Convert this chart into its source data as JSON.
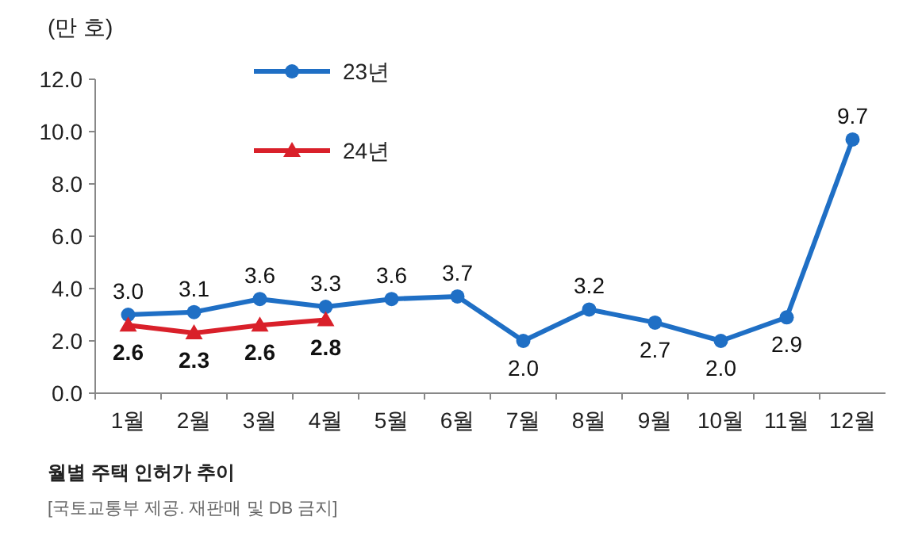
{
  "chart_data": {
    "type": "line",
    "ylabel": "(만 호)",
    "categories": [
      "1월",
      "2월",
      "3월",
      "4월",
      "5월",
      "6월",
      "7월",
      "8월",
      "9월",
      "10월",
      "11월",
      "12월"
    ],
    "series": [
      {
        "name": "23년",
        "color": "#1f6fc5",
        "marker": "circle",
        "values": [
          3.0,
          3.1,
          3.6,
          3.3,
          3.6,
          3.7,
          2.0,
          3.2,
          2.7,
          2.0,
          2.9,
          9.7
        ],
        "value_labels": [
          "3.0",
          "3.1",
          "3.6",
          "3.3",
          "3.6",
          "3.7",
          "2.0",
          "3.2",
          "2.7",
          "2.0",
          "2.9",
          "9.7"
        ]
      },
      {
        "name": "24년",
        "color": "#d9202a",
        "marker": "triangle",
        "values": [
          2.6,
          2.3,
          2.6,
          2.8,
          null,
          null,
          null,
          null,
          null,
          null,
          null,
          null
        ],
        "value_labels": [
          "2.6",
          "2.3",
          "2.6",
          "2.8",
          null,
          null,
          null,
          null,
          null,
          null,
          null,
          null
        ]
      }
    ],
    "ylim": [
      0,
      12
    ],
    "yticks": [
      {
        "value": 0,
        "label": "0.0"
      },
      {
        "value": 2,
        "label": "2.0"
      },
      {
        "value": 4,
        "label": "4.0"
      },
      {
        "value": 6,
        "label": "6.0"
      },
      {
        "value": 8,
        "label": "8.0"
      },
      {
        "value": 10,
        "label": "10.0"
      },
      {
        "value": 12,
        "label": "12.0"
      }
    ],
    "legend": "top left",
    "grid": false,
    "annotations": [
      "월별 주택 인허가 추이",
      "[국토교통부 제공. 재판매 및 DB 금지]"
    ]
  }
}
